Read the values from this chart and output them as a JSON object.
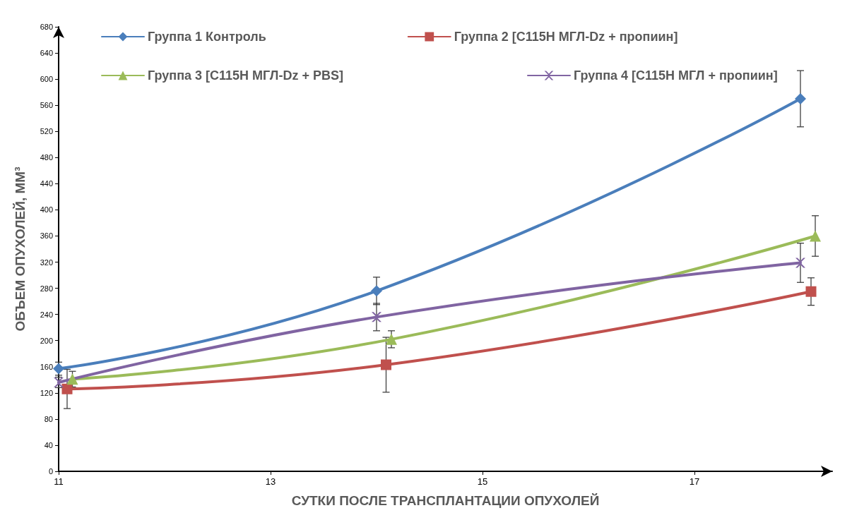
{
  "chart_data": {
    "type": "line",
    "xlabel": "СУТКИ ПОСЛЕ ТРАНСПЛАНТАЦИИ ОПУХОЛЕЙ",
    "ylabel": "ОБЪЕМ ОПУХОЛЕЙ, ММ³",
    "xlim": [
      11,
      18.3
    ],
    "xticks": [
      11,
      13,
      15,
      17
    ],
    "ylim": [
      0,
      680
    ],
    "yticks": [
      0,
      40,
      80,
      120,
      160,
      200,
      240,
      280,
      320,
      360,
      400,
      440,
      480,
      520,
      560,
      600,
      640,
      680
    ],
    "grid": false,
    "legend": "top",
    "line_style": "solid",
    "series": [
      {
        "name": "Группа 1 Контроль",
        "color": "#4a7ebb",
        "marker": "diamond",
        "x": [
          11,
          14,
          18
        ],
        "values": [
          157,
          276,
          570
        ],
        "errors": [
          10,
          21,
          43
        ]
      },
      {
        "name": "Группа 2 [С115Н МГЛ-Dz + пропиин]",
        "color": "#c0504d",
        "marker": "square",
        "x": [
          11.08,
          14.09,
          18.1
        ],
        "values": [
          126,
          163,
          275
        ],
        "errors": [
          30,
          42,
          21
        ]
      },
      {
        "name": "Группа 3 [С115Н МГЛ-Dz + PBS]",
        "color": "#9bbb59",
        "marker": "triangle",
        "x": [
          11.13,
          14.14,
          18.14
        ],
        "values": [
          141,
          202,
          360
        ],
        "errors": [
          12,
          13,
          31
        ]
      },
      {
        "name": "Группа 4 [С115Н МГЛ + пропиин]",
        "color": "#8064a2",
        "marker": "cross",
        "x": [
          11,
          14,
          18
        ],
        "values": [
          136,
          236,
          319
        ],
        "errors": [
          8,
          21,
          30
        ]
      }
    ]
  }
}
